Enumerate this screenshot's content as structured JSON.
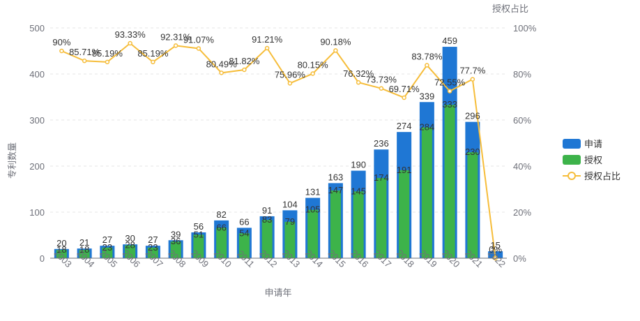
{
  "chart_data": {
    "type": "bar",
    "categories": [
      "2003",
      "2004",
      "2005",
      "2006",
      "2007",
      "2008",
      "2009",
      "2010",
      "2011",
      "2012",
      "2013",
      "2014",
      "2015",
      "2016",
      "2017",
      "2018",
      "2019",
      "2020",
      "2021",
      "2022"
    ],
    "series": [
      {
        "name": "申请",
        "type": "bar",
        "color": "#1f77d4",
        "values": [
          20,
          21,
          27,
          30,
          27,
          39,
          56,
          82,
          66,
          91,
          104,
          131,
          163,
          190,
          236,
          274,
          339,
          459,
          296,
          15
        ]
      },
      {
        "name": "授权",
        "type": "bar",
        "color": "#3db34a",
        "values": [
          18,
          18,
          23,
          28,
          23,
          36,
          51,
          66,
          54,
          83,
          79,
          105,
          147,
          145,
          174,
          191,
          284,
          333,
          230,
          0
        ]
      },
      {
        "name": "授权占比",
        "type": "line",
        "axis": "right",
        "color": "#f6bd3a",
        "values": [
          90,
          85.71,
          85.19,
          93.33,
          85.19,
          92.31,
          91.07,
          80.49,
          81.82,
          91.21,
          75.96,
          80.15,
          90.18,
          76.32,
          73.73,
          69.71,
          83.78,
          72.55,
          77.7,
          0
        ],
        "labels": [
          "90%",
          "85.71%",
          "85.19%",
          "93.33%",
          "85.19%",
          "92.31%",
          "91.07%",
          "80.49%",
          "81.82%",
          "91.21%",
          "75.96%",
          "80.15%",
          "90.18%",
          "76.32%",
          "73.73%",
          "69.71%",
          "83.78%",
          "72.55%",
          "77.7%",
          "0%"
        ]
      }
    ],
    "xlabel": "申请年",
    "ylabel": "专利数量",
    "y2label": "授权占比",
    "ylim": [
      0,
      500
    ],
    "y2lim": [
      0,
      100
    ],
    "yticks": [
      0,
      100,
      200,
      300,
      400,
      500
    ],
    "y2ticks": [
      "0%",
      "20%",
      "40%",
      "60%",
      "80%",
      "100%"
    ],
    "legend": "right",
    "grid": true
  },
  "colors": {
    "axis_text": "#6e7079",
    "grid": "#e6e6e6",
    "label": "#333333"
  }
}
